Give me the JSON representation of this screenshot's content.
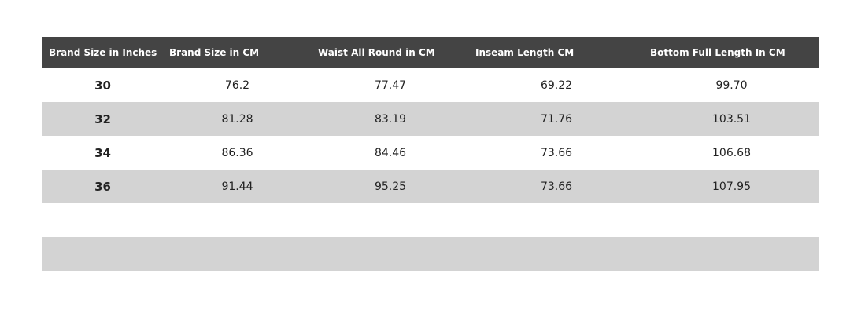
{
  "table": {
    "headers": [
      "Brand Size in Inches",
      "Brand Size in CM",
      "Waist All Round in CM",
      "Inseam Length CM",
      "Bottom Full Length In CM"
    ],
    "rows": [
      [
        "30",
        "76.2",
        "77.47",
        "69.22",
        "99.70"
      ],
      [
        "32",
        "81.28",
        "83.19",
        "71.76",
        "103.51"
      ],
      [
        "34",
        "86.36",
        "84.46",
        "73.66",
        "106.68"
      ],
      [
        "36",
        "91.44",
        "95.25",
        "73.66",
        "107.95"
      ]
    ]
  }
}
